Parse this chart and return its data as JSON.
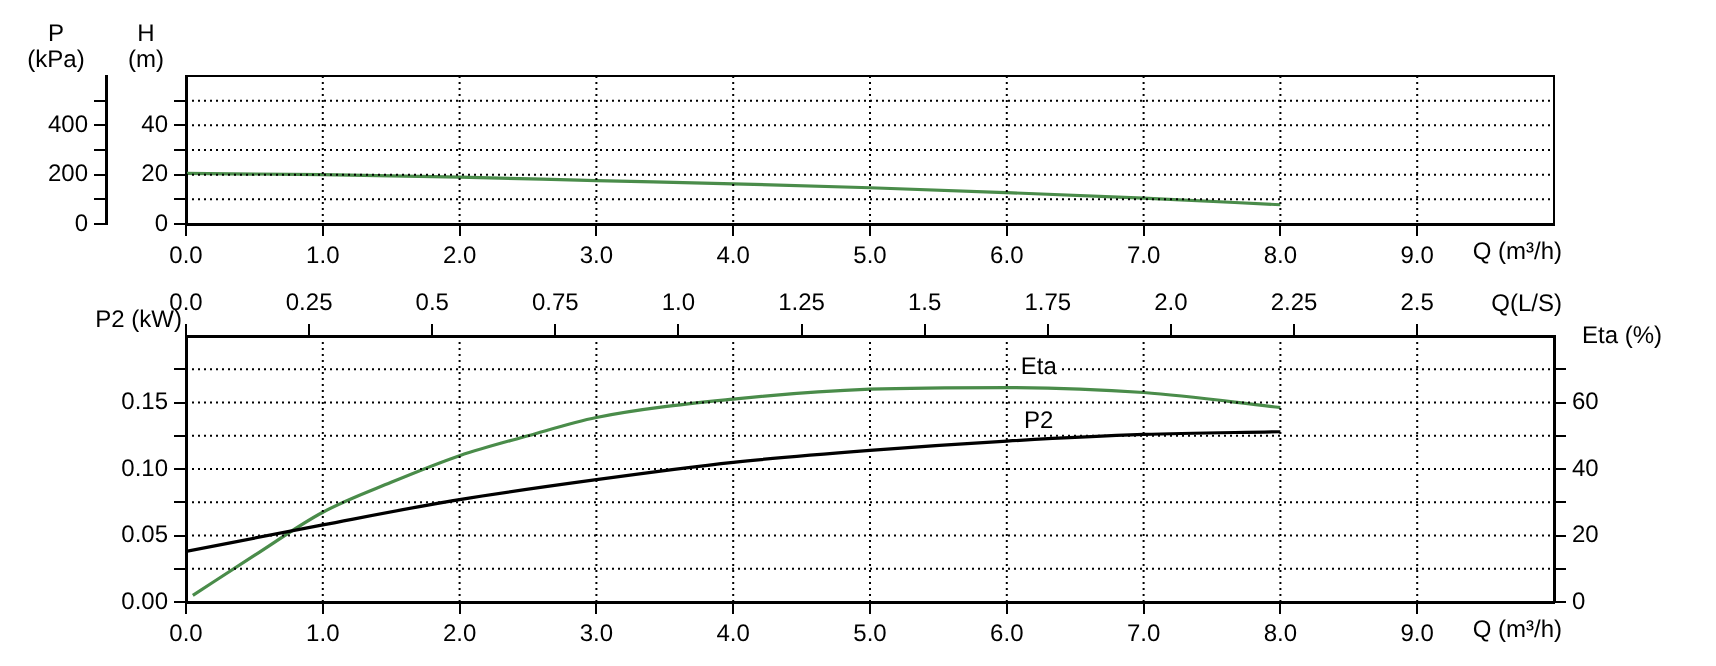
{
  "chart_data": [
    {
      "type": "line",
      "xlabel": "Q (m³/h)",
      "ylabel": "H (m)",
      "y2label": "P (kPa)",
      "grid": true,
      "legend": false,
      "marker": "none",
      "xlim": [
        0,
        10
      ],
      "xticks": [
        {
          "value": 0,
          "label": "0.0"
        },
        {
          "value": 1,
          "label": "1.0"
        },
        {
          "value": 2,
          "label": "2.0"
        },
        {
          "value": 3,
          "label": "3.0"
        },
        {
          "value": 4,
          "label": "4.0"
        },
        {
          "value": 5,
          "label": "5.0"
        },
        {
          "value": 6,
          "label": "6.0"
        },
        {
          "value": 7,
          "label": "7.0"
        },
        {
          "value": 8,
          "label": "8.0"
        },
        {
          "value": 9,
          "label": "9.0"
        }
      ],
      "ylim": [
        0,
        60
      ],
      "yticks": [
        0,
        {
          "value": 10,
          "label": null
        },
        20,
        {
          "value": 30,
          "label": null
        },
        40,
        {
          "value": 50,
          "label": null
        }
      ],
      "y2lim": [
        0,
        600
      ],
      "y2ticks": [
        0,
        {
          "value": 100,
          "label": null
        },
        200,
        {
          "value": 300,
          "label": null
        },
        400,
        {
          "value": 500,
          "label": null
        }
      ],
      "x": [
        0,
        1,
        2,
        3,
        4,
        5,
        6,
        7,
        8
      ],
      "series": [
        {
          "color": "#4a8c4a",
          "values": [
            20.5,
            20,
            19,
            17.6,
            16.3,
            14.7,
            12.7,
            10.5,
            7.8
          ]
        }
      ]
    },
    {
      "type": "line",
      "xlabel": "Q (m³/h)",
      "x2label": "Q(L/S)",
      "ylabel": "P2 (kW)",
      "y2label": "Eta (%)",
      "grid": true,
      "legend": false,
      "marker": "none",
      "xlim": [
        0,
        10
      ],
      "xticks": [
        {
          "value": 0,
          "label": "0.0"
        },
        {
          "value": 1,
          "label": "1.0"
        },
        {
          "value": 2,
          "label": "2.0"
        },
        {
          "value": 3,
          "label": "3.0"
        },
        {
          "value": 4,
          "label": "4.0"
        },
        {
          "value": 5,
          "label": "5.0"
        },
        {
          "value": 6,
          "label": "6.0"
        },
        {
          "value": 7,
          "label": "7.0"
        },
        {
          "value": 8,
          "label": "8.0"
        },
        {
          "value": 9,
          "label": "9.0"
        }
      ],
      "x2lim": [
        0,
        2.778
      ],
      "x2ticks": [
        {
          "value": 0,
          "label": "0.0"
        },
        0.25,
        {
          "value": 0.5,
          "label": "0.5"
        },
        0.75,
        {
          "value": 1,
          "label": "1.0"
        },
        1.25,
        {
          "value": 1.5,
          "label": "1.5"
        },
        1.75,
        {
          "value": 2,
          "label": "2.0"
        },
        2.25,
        {
          "value": 2.5,
          "label": "2.5"
        }
      ],
      "ylim": [
        0,
        0.2
      ],
      "yticks": [
        {
          "value": 0,
          "label": "0.00"
        },
        {
          "value": 0.025,
          "label": null
        },
        0.05,
        {
          "value": 0.075,
          "label": null
        },
        {
          "value": 0.1,
          "label": "0.10"
        },
        {
          "value": 0.125,
          "label": null
        },
        0.15,
        {
          "value": 0.175,
          "label": null
        }
      ],
      "y2lim": [
        0,
        80
      ],
      "y2ticks": [
        0,
        {
          "value": 10,
          "label": null
        },
        20,
        {
          "value": 30,
          "label": null
        },
        40,
        {
          "value": 50,
          "label": null
        },
        60,
        {
          "value": 70,
          "label": null
        }
      ],
      "series": [
        {
          "name": "P2",
          "color": "#000000",
          "x": [
            0,
            1,
            2,
            3,
            4,
            5,
            6,
            7,
            8
          ],
          "values": [
            0.038,
            0.058,
            0.077,
            0.092,
            0.105,
            0.114,
            0.121,
            0.126,
            0.128
          ]
        },
        {
          "name": "Eta",
          "color": "#4a8c4a",
          "axis": "y2",
          "x": [
            0.05,
            0.5,
            1,
            1.5,
            2,
            2.5,
            3,
            4,
            5,
            6,
            7,
            8
          ],
          "values": [
            2,
            14,
            27,
            36,
            44,
            50,
            55.5,
            61,
            64,
            64.5,
            63,
            58.5
          ]
        }
      ]
    }
  ]
}
